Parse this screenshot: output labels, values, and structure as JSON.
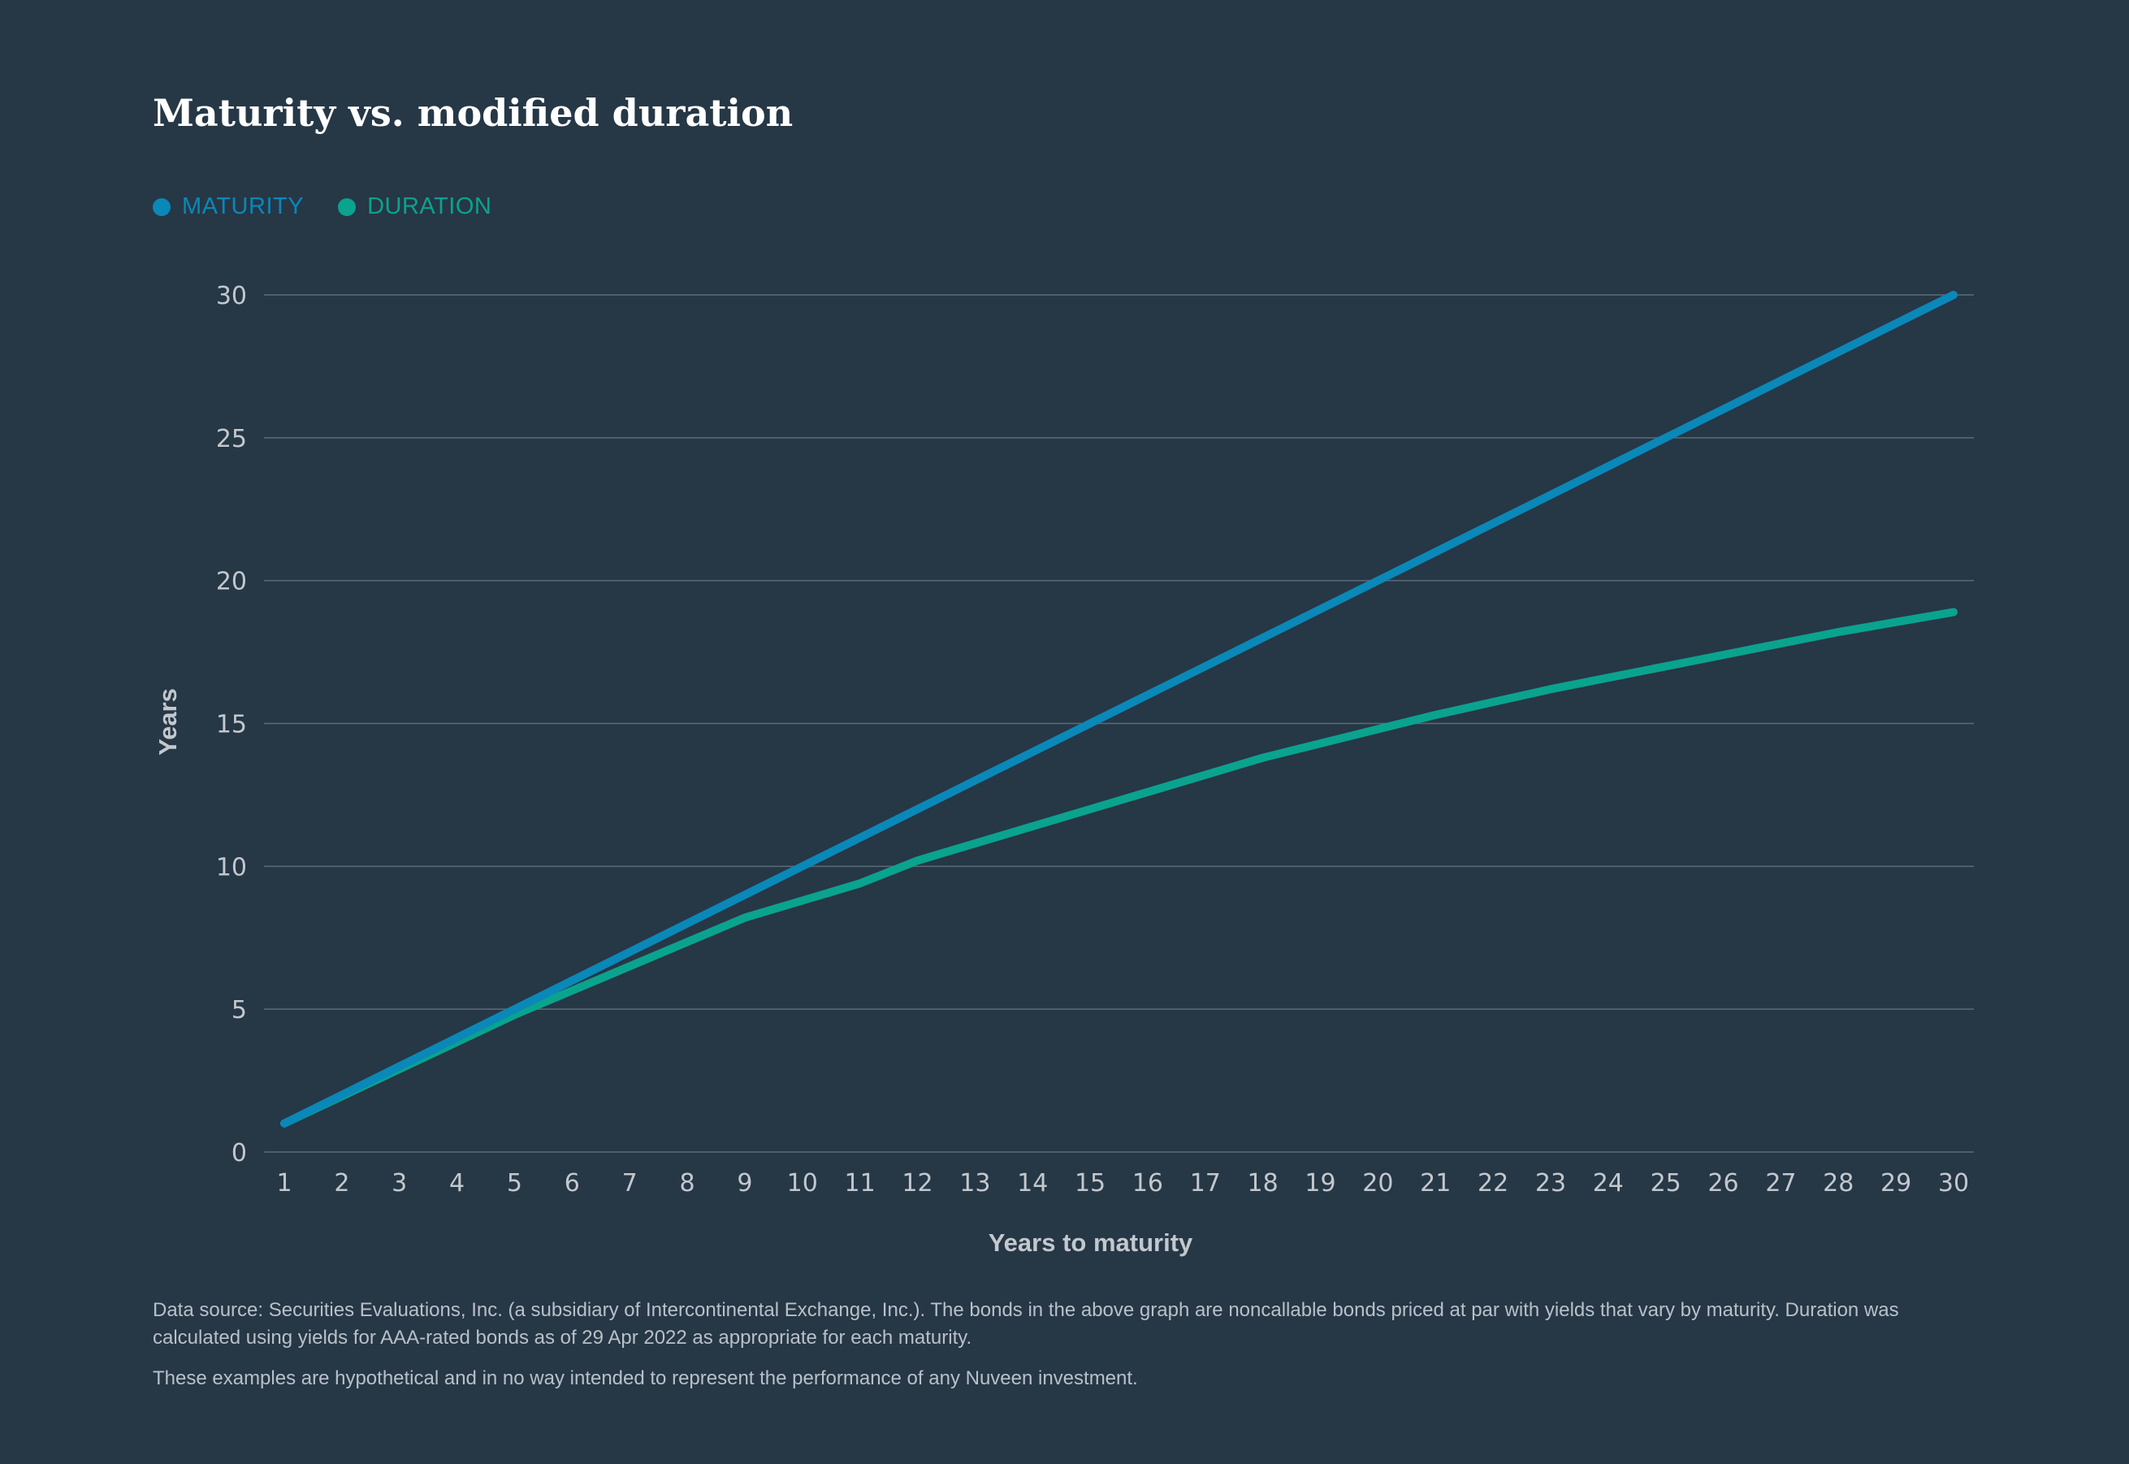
{
  "title": "Maturity vs. modified duration",
  "legend": [
    {
      "label": "MATURITY",
      "color": "#0a88b8"
    },
    {
      "label": "DURATION",
      "color": "#0aa38e"
    }
  ],
  "chart_data": {
    "type": "line",
    "title": "Maturity vs. modified duration",
    "xlabel": "Years to maturity",
    "ylabel": "Years",
    "xlim": [
      1,
      30
    ],
    "ylim": [
      0,
      30
    ],
    "x_ticks": [
      1,
      2,
      3,
      4,
      5,
      6,
      7,
      8,
      9,
      10,
      11,
      12,
      13,
      14,
      15,
      16,
      17,
      18,
      19,
      20,
      21,
      22,
      23,
      24,
      25,
      26,
      27,
      28,
      29,
      30
    ],
    "y_ticks": [
      0,
      5,
      10,
      15,
      20,
      25,
      30
    ],
    "grid": true,
    "legend_position": "top-left",
    "series": [
      {
        "name": "MATURITY",
        "color": "#0a88b8",
        "x": [
          1,
          2,
          3,
          4,
          5,
          6,
          7,
          8,
          9,
          10,
          11,
          12,
          13,
          14,
          15,
          16,
          17,
          18,
          19,
          20,
          21,
          22,
          23,
          24,
          25,
          26,
          27,
          28,
          29,
          30
        ],
        "values": [
          1,
          2,
          3,
          4,
          5,
          6,
          7,
          8,
          9,
          10,
          11,
          12,
          13,
          14,
          15,
          16,
          17,
          18,
          19,
          20,
          21,
          22,
          23,
          24,
          25,
          26,
          27,
          28,
          29,
          30
        ]
      },
      {
        "name": "DURATION",
        "color": "#0aa38e",
        "x": [
          1,
          2,
          3,
          4,
          5,
          6,
          7,
          8,
          9,
          10,
          11,
          12,
          13,
          14,
          15,
          16,
          17,
          18,
          19,
          20,
          21,
          22,
          23,
          24,
          25,
          26,
          27,
          28,
          29,
          30
        ],
        "values": [
          1.0,
          1.95,
          2.9,
          3.85,
          4.8,
          5.65,
          6.5,
          7.35,
          8.2,
          8.8,
          9.4,
          10.2,
          10.8,
          11.4,
          12.0,
          12.6,
          13.2,
          13.8,
          14.3,
          14.8,
          15.3,
          15.75,
          16.2,
          16.6,
          17.0,
          17.4,
          17.8,
          18.2,
          18.55,
          18.9
        ]
      }
    ]
  },
  "notes": [
    "Data source: Securities Evaluations, Inc. (a subsidiary of Intercontinental Exchange, Inc.). The bonds in the above graph are noncallable bonds priced at par with yields that vary by maturity. Duration was calculated using yields for AAA-rated bonds as of 29 Apr 2022 as appropriate for each maturity.",
    "These examples are hypothetical and in no way intended to represent the performance of any Nuveen investment."
  ],
  "colors": {
    "background": "#263746",
    "grid": "#5c6b78",
    "tick_text": "#c3c8cd",
    "title_text": "#ffffff"
  }
}
